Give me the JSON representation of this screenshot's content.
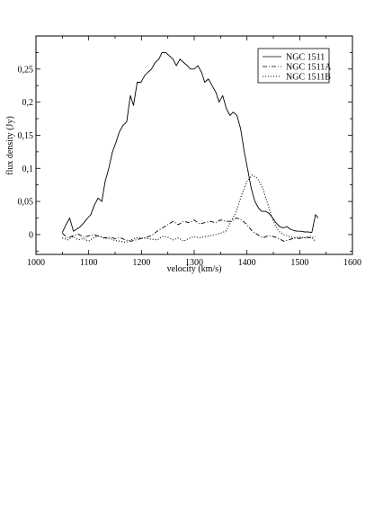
{
  "chart_data": {
    "type": "line",
    "xlabel": "velocity (km/s)",
    "ylabel": "flux density (Jy)",
    "xlim": [
      1000,
      1600
    ],
    "ylim": [
      -0.03,
      0.3
    ],
    "xticks": [
      1000,
      1100,
      1200,
      1300,
      1400,
      1500,
      1600
    ],
    "xtick_labels": [
      "1000",
      "1100",
      "1200",
      "1300",
      "1400",
      "1500",
      "1600"
    ],
    "yticks": [
      0,
      0.05,
      0.1,
      0.15,
      0.2,
      0.25
    ],
    "ytick_labels": [
      "0",
      "0,05",
      "0,1",
      "0,15",
      "0,2",
      "0,25"
    ],
    "legend_position": "top-right",
    "grid": false,
    "series": [
      {
        "name": "NGC 1511",
        "style": "solid",
        "x": [
          1050,
          1057,
          1064,
          1071,
          1077,
          1084,
          1091,
          1098,
          1104,
          1111,
          1118,
          1125,
          1131,
          1138,
          1145,
          1152,
          1158,
          1165,
          1172,
          1179,
          1185,
          1192,
          1199,
          1206,
          1212,
          1219,
          1226,
          1233,
          1239,
          1246,
          1253,
          1260,
          1266,
          1273,
          1280,
          1287,
          1293,
          1300,
          1307,
          1314,
          1320,
          1327,
          1334,
          1341,
          1347,
          1354,
          1361,
          1368,
          1374,
          1381,
          1388,
          1395,
          1401,
          1408,
          1415,
          1422,
          1428,
          1435,
          1442,
          1449,
          1455,
          1462,
          1469,
          1476,
          1482,
          1489,
          1496,
          1503,
          1509,
          1516,
          1523,
          1530,
          1535
        ],
        "y": [
          0.003,
          0.015,
          0.025,
          0.005,
          0.008,
          0.012,
          0.018,
          0.025,
          0.03,
          0.045,
          0.055,
          0.05,
          0.08,
          0.1,
          0.125,
          0.14,
          0.155,
          0.165,
          0.17,
          0.21,
          0.195,
          0.23,
          0.23,
          0.24,
          0.245,
          0.25,
          0.26,
          0.265,
          0.275,
          0.275,
          0.27,
          0.265,
          0.255,
          0.265,
          0.26,
          0.255,
          0.25,
          0.25,
          0.255,
          0.245,
          0.23,
          0.235,
          0.225,
          0.215,
          0.2,
          0.21,
          0.19,
          0.18,
          0.185,
          0.18,
          0.16,
          0.125,
          0.1,
          0.07,
          0.05,
          0.04,
          0.035,
          0.035,
          0.032,
          0.025,
          0.018,
          0.012,
          0.01,
          0.012,
          0.008,
          0.006,
          0.005,
          0.005,
          0.004,
          0.004,
          0.003,
          0.03,
          0.025
        ]
      },
      {
        "name": "NGC 1511A",
        "style": "dashed",
        "x": [
          1050,
          1060,
          1070,
          1080,
          1090,
          1100,
          1110,
          1120,
          1130,
          1140,
          1150,
          1160,
          1170,
          1180,
          1190,
          1200,
          1210,
          1220,
          1230,
          1240,
          1250,
          1260,
          1270,
          1280,
          1290,
          1300,
          1310,
          1320,
          1330,
          1340,
          1350,
          1360,
          1370,
          1380,
          1390,
          1400,
          1410,
          1420,
          1430,
          1440,
          1450,
          1460,
          1470,
          1480,
          1490,
          1500,
          1510,
          1520,
          1530
        ],
        "y": [
          0.002,
          -0.005,
          -0.002,
          0.001,
          -0.004,
          -0.002,
          0.0,
          -0.003,
          -0.005,
          -0.004,
          -0.006,
          -0.005,
          -0.008,
          -0.01,
          -0.008,
          -0.006,
          -0.004,
          -0.001,
          0.005,
          0.01,
          0.015,
          0.02,
          0.015,
          0.02,
          0.018,
          0.022,
          0.016,
          0.018,
          0.02,
          0.018,
          0.022,
          0.02,
          0.02,
          0.025,
          0.022,
          0.015,
          0.005,
          0.0,
          -0.005,
          -0.002,
          -0.003,
          -0.006,
          -0.01,
          -0.008,
          -0.005,
          -0.006,
          -0.004,
          -0.005,
          -0.003
        ]
      },
      {
        "name": "NGC 1511B",
        "style": "dotted",
        "x": [
          1050,
          1060,
          1070,
          1080,
          1090,
          1100,
          1110,
          1120,
          1130,
          1140,
          1150,
          1160,
          1170,
          1180,
          1190,
          1200,
          1210,
          1220,
          1230,
          1240,
          1250,
          1260,
          1270,
          1280,
          1290,
          1300,
          1310,
          1320,
          1330,
          1340,
          1350,
          1360,
          1370,
          1380,
          1390,
          1400,
          1410,
          1420,
          1430,
          1440,
          1450,
          1460,
          1470,
          1480,
          1490,
          1500,
          1510,
          1520,
          1530
        ],
        "y": [
          -0.005,
          -0.008,
          -0.003,
          -0.008,
          -0.006,
          -0.01,
          -0.004,
          -0.002,
          -0.006,
          -0.006,
          -0.009,
          -0.01,
          -0.012,
          -0.008,
          -0.005,
          -0.005,
          -0.006,
          -0.007,
          -0.008,
          -0.003,
          -0.004,
          -0.008,
          -0.005,
          -0.01,
          -0.006,
          -0.003,
          -0.005,
          -0.003,
          -0.002,
          0.0,
          0.002,
          0.005,
          0.02,
          0.035,
          0.06,
          0.08,
          0.09,
          0.085,
          0.07,
          0.045,
          0.02,
          0.005,
          0.0,
          -0.003,
          -0.005,
          -0.004,
          -0.005,
          -0.003,
          -0.01
        ]
      }
    ]
  }
}
